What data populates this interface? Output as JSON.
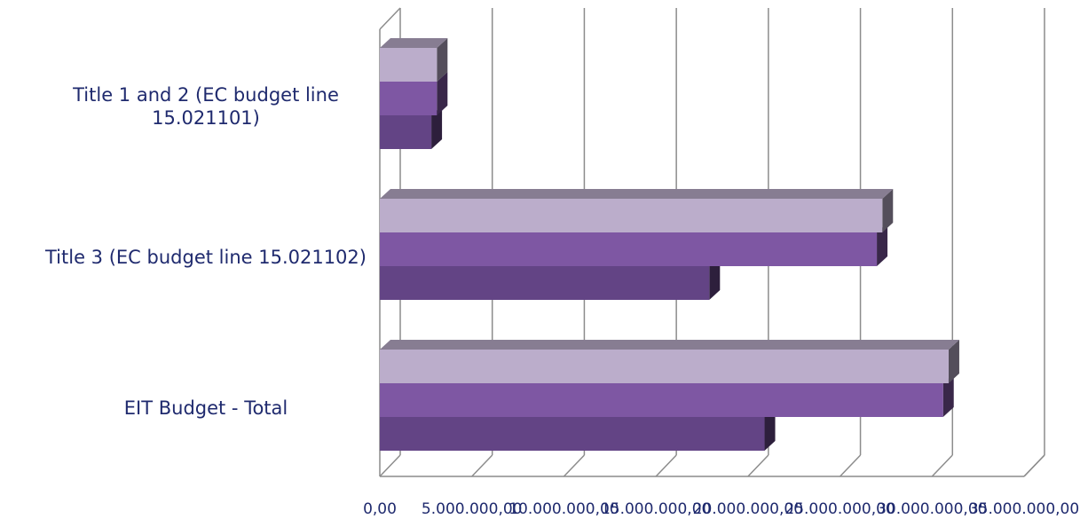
{
  "chart_data": {
    "type": "bar",
    "orientation": "horizontal",
    "style": "3d",
    "categories": [
      "Title 1 and 2 (EC budget line 15.021101)",
      "Title 3 (EC budget line 15.021102)",
      "EIT Budget - Total"
    ],
    "category_label_lines": [
      [
        "Title 1 and 2 (EC budget line",
        "15.021101)"
      ],
      [
        "Title 3 (EC budget line 15.021102)"
      ],
      [
        "EIT Budget - Total"
      ]
    ],
    "series": [
      {
        "values": [
          3100000,
          27300000,
          30900000
        ],
        "color": "#bbadcb"
      },
      {
        "values": [
          3100000,
          27000000,
          30600000
        ],
        "color": "#7e57a3"
      },
      {
        "values": [
          2800000,
          17900000,
          20900000
        ],
        "color": "#634485"
      }
    ],
    "xlim": [
      0,
      35000000
    ],
    "x_ticks": [
      0,
      5000000,
      10000000,
      15000000,
      20000000,
      25000000,
      30000000,
      35000000
    ],
    "x_tick_labels": [
      "0,00",
      "5.000.000,00",
      "10.000.000,00",
      "15.000.000,00",
      "20.000.000,00",
      "25.000.000,00",
      "30.000.000,00",
      "35.000.000,00"
    ],
    "grid": true,
    "legend": "none"
  }
}
